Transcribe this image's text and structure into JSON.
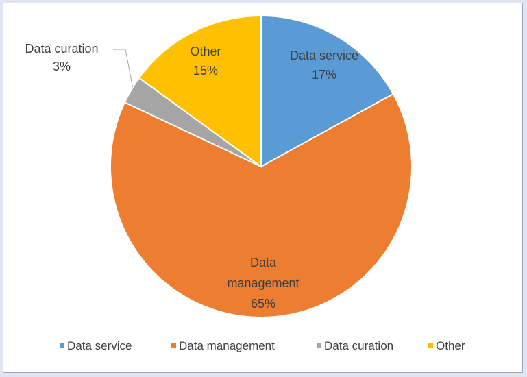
{
  "chart_data": {
    "type": "pie",
    "categories": [
      "Data service",
      "Data management",
      "Data curation",
      "Other"
    ],
    "values": [
      17,
      65,
      3,
      15
    ],
    "unit": "%",
    "colors": [
      "#5b9bd5",
      "#ed7d31",
      "#a5a5a5",
      "#ffc000"
    ],
    "title": "",
    "start_angle_deg": 0,
    "direction": "clockwise",
    "legend_position": "bottom",
    "data_labels": [
      {
        "lines": [
          "Data service",
          "17%"
        ]
      },
      {
        "lines": [
          "Data",
          "management",
          "65%"
        ]
      },
      {
        "lines": [
          "Data curation",
          "3%"
        ]
      },
      {
        "lines": [
          "Other",
          "15%"
        ]
      }
    ]
  }
}
